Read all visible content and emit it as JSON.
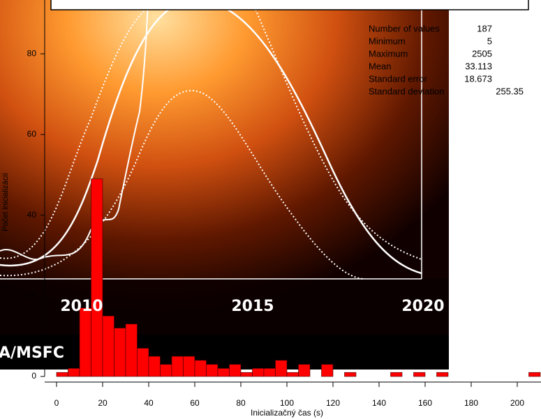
{
  "chart_data": {
    "type": "histogram",
    "bins": [
      0,
      5,
      10,
      15,
      20,
      25,
      30,
      35,
      40,
      45,
      50,
      55,
      60,
      65,
      70,
      75,
      80,
      85,
      90,
      95,
      100,
      105,
      110,
      115,
      120,
      125,
      130,
      135,
      140,
      145,
      150,
      155,
      160,
      165,
      170,
      175,
      180,
      185,
      190,
      195,
      200,
      205,
      210
    ],
    "values": [
      1,
      2,
      17,
      49,
      15,
      12,
      13,
      7,
      5,
      3,
      5,
      5,
      4,
      3,
      2,
      3,
      1,
      2,
      2,
      4,
      1,
      3,
      0,
      3,
      0,
      1,
      0,
      0,
      0,
      1,
      0,
      1,
      0,
      1,
      0,
      0,
      0,
      0,
      0,
      0,
      0,
      1
    ],
    "color": "#ff0000",
    "xlabel": "Inicializačný čas (s)",
    "ylabel": "Počet inicializácií",
    "xlim": [
      0,
      210
    ],
    "xticks": [
      0,
      20,
      40,
      60,
      80,
      100,
      120,
      140,
      160,
      180,
      200
    ],
    "ylim": [
      0,
      93
    ],
    "yticks": [
      0,
      20,
      40,
      60,
      80
    ],
    "stats": [
      {
        "label": "Number of values",
        "value": 187
      },
      {
        "label": "Minimum",
        "value": 5
      },
      {
        "label": "Maximum",
        "value": 2505
      },
      {
        "label": "Mean",
        "value": 33.113
      },
      {
        "label": "Standard error",
        "value": 18.673
      },
      {
        "label": "Standard deviation",
        "value": 255.35
      }
    ],
    "image_labels": [
      "2010",
      "2015",
      "2020",
      "A/MSFC"
    ]
  }
}
